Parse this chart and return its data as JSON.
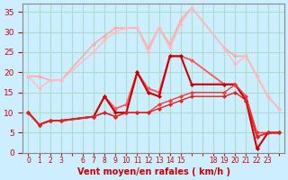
{
  "bg_color": "#cceeff",
  "grid_color": "#aaddcc",
  "xlabel": "Vent moyen/en rafales ( km/h )",
  "xlabel_color": "#cc0000",
  "tick_color": "#cc0000",
  "ylim": [
    0,
    37
  ],
  "yticks": [
    0,
    5,
    10,
    15,
    20,
    25,
    30,
    35
  ],
  "lines": [
    {
      "color": "#ffaaaa",
      "lw": 1.2,
      "x": [
        0,
        1,
        2,
        3,
        6,
        7,
        8,
        9,
        10,
        11,
        12,
        13,
        14,
        15,
        18,
        19,
        20,
        21,
        22,
        23
      ],
      "y": [
        19,
        19,
        18,
        18,
        27,
        29,
        31,
        31,
        31,
        26,
        31,
        27,
        33,
        36,
        26,
        24,
        24,
        19,
        14,
        11
      ]
    },
    {
      "color": "#ffbbbb",
      "lw": 1.0,
      "x": [
        0,
        1,
        2,
        3,
        6,
        7,
        8,
        9,
        10,
        11,
        12,
        13,
        14,
        15,
        18,
        19,
        20,
        21,
        22,
        23
      ],
      "y": [
        19,
        16,
        18,
        18,
        25,
        28,
        30,
        31,
        31,
        25,
        31,
        26,
        32,
        36,
        26,
        22,
        24,
        19,
        14,
        11
      ]
    },
    {
      "color": "#ff5555",
      "lw": 1.3,
      "x": [
        0,
        1,
        2,
        3,
        6,
        7,
        8,
        9,
        10,
        11,
        12,
        13,
        14,
        15,
        18,
        19,
        20,
        21,
        22,
        23
      ],
      "y": [
        10,
        7,
        8,
        8,
        9,
        14,
        11,
        12,
        20,
        16,
        15,
        24,
        24,
        23,
        17,
        17,
        13,
        4,
        5,
        5
      ]
    },
    {
      "color": "#cc0000",
      "lw": 1.5,
      "x": [
        0,
        1,
        2,
        3,
        6,
        7,
        8,
        9,
        10,
        11,
        12,
        13,
        14,
        15,
        18,
        19,
        20,
        21,
        22,
        23
      ],
      "y": [
        10,
        7,
        8,
        8,
        9,
        14,
        10,
        10,
        20,
        15,
        14,
        24,
        24,
        17,
        17,
        17,
        13,
        1,
        5,
        5
      ]
    },
    {
      "color": "#ff3333",
      "lw": 1.0,
      "x": [
        0,
        1,
        2,
        3,
        6,
        7,
        8,
        9,
        10,
        11,
        12,
        13,
        14,
        15,
        18,
        19,
        20,
        21,
        22,
        23
      ],
      "y": [
        10,
        7,
        8,
        8,
        9,
        10,
        9,
        10,
        10,
        10,
        12,
        13,
        14,
        15,
        15,
        17,
        14,
        5,
        5,
        5
      ]
    },
    {
      "color": "#dd2222",
      "lw": 1.0,
      "x": [
        0,
        1,
        2,
        3,
        6,
        7,
        8,
        9,
        10,
        11,
        12,
        13,
        14,
        15,
        18,
        19,
        20,
        21,
        22,
        23
      ],
      "y": [
        10,
        7,
        8,
        8,
        9,
        10,
        9,
        10,
        10,
        10,
        11,
        12,
        13,
        14,
        14,
        15,
        13,
        4,
        5,
        5
      ]
    }
  ]
}
